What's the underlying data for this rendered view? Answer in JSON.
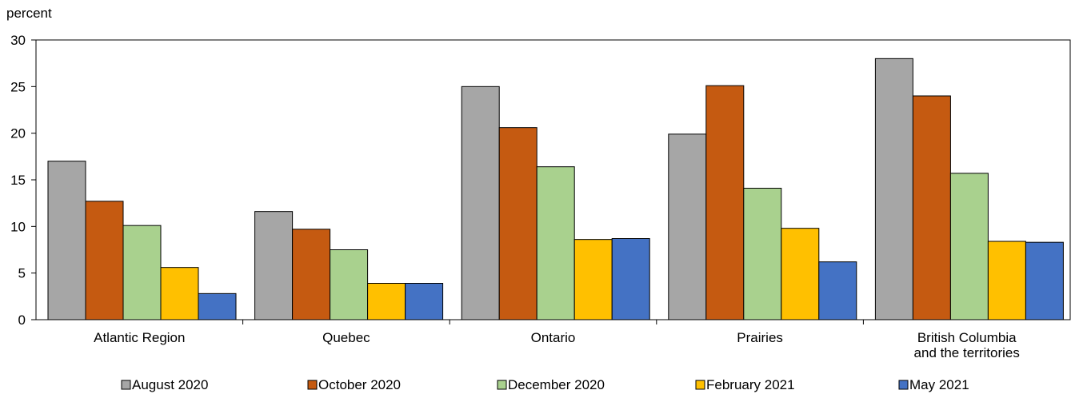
{
  "chart_data": {
    "type": "bar",
    "title": "",
    "xlabel": "",
    "ylabel": "percent",
    "ylim": [
      0,
      30
    ],
    "yticks": [
      0,
      5,
      10,
      15,
      20,
      25,
      30
    ],
    "grid": false,
    "legend_position": "bottom",
    "categories": [
      [
        "Atlantic Region"
      ],
      [
        "Quebec"
      ],
      [
        "Ontario"
      ],
      [
        "Prairies"
      ],
      [
        "British Columbia",
        "and the territories"
      ]
    ],
    "series": [
      {
        "name": "August 2020",
        "color": "#a6a6a6",
        "values": [
          17.0,
          11.6,
          25.0,
          19.9,
          28.0
        ]
      },
      {
        "name": "October 2020",
        "color": "#c55a11",
        "values": [
          12.7,
          9.7,
          20.6,
          25.1,
          24.0
        ]
      },
      {
        "name": "December 2020",
        "color": "#a9d18e",
        "values": [
          10.1,
          7.5,
          16.4,
          14.1,
          15.7
        ]
      },
      {
        "name": "February 2021",
        "color": "#ffc000",
        "values": [
          5.6,
          3.9,
          8.6,
          9.8,
          8.4
        ]
      },
      {
        "name": "May 2021",
        "color": "#4472c4",
        "values": [
          2.8,
          3.9,
          8.7,
          6.2,
          8.3
        ]
      }
    ]
  }
}
